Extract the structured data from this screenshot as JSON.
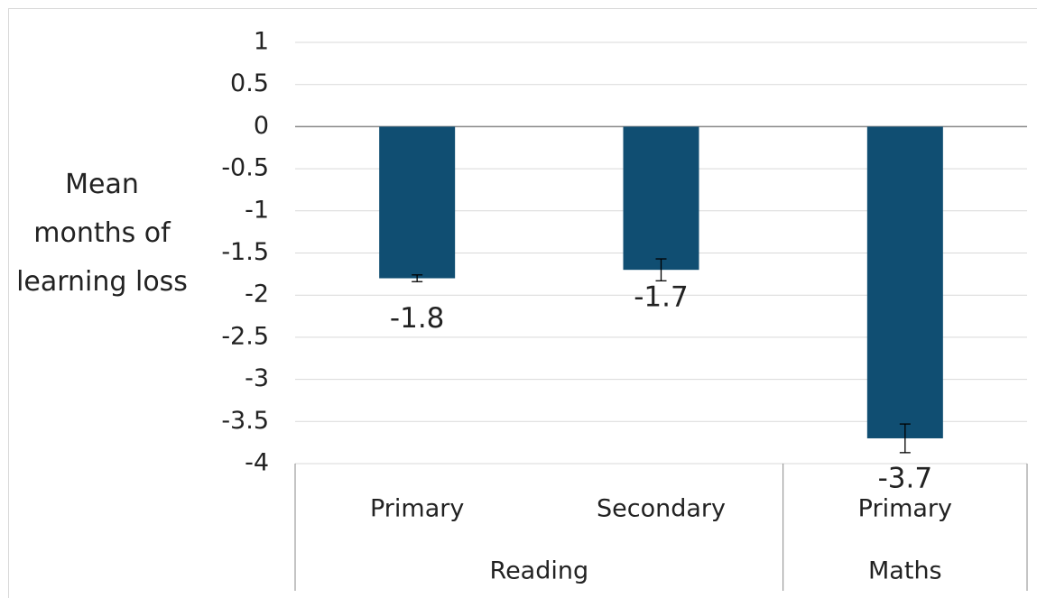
{
  "chart_data": {
    "type": "bar",
    "y_label": "Mean months of learning loss",
    "groups": [
      {
        "name": "Reading",
        "categories": [
          "Primary",
          "Secondary"
        ]
      },
      {
        "name": "Maths",
        "categories": [
          "Primary"
        ]
      }
    ],
    "values": [
      -1.8,
      -1.7,
      -3.7
    ],
    "errors": [
      0.04,
      0.13,
      0.17
    ],
    "color": "#104e72",
    "ylim": [
      -4,
      1
    ],
    "yticks": [
      1,
      0.5,
      0,
      -0.5,
      -1,
      -1.5,
      -2,
      -2.5,
      -3,
      -3.5,
      -4
    ],
    "grid": true
  }
}
